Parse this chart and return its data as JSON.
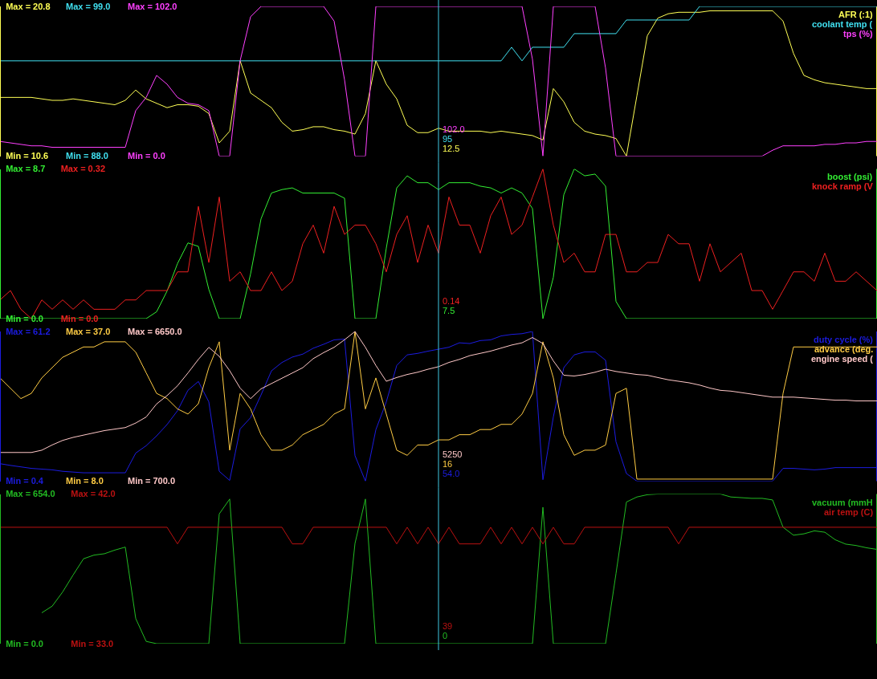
{
  "chart_data": [
    {
      "type": "line",
      "legend": "top right",
      "tick_labels": "y",
      "categories": [
        null,
        null,
        null,
        null,
        null,
        null,
        null,
        null,
        null,
        null,
        null,
        null,
        null,
        null,
        null,
        null,
        null,
        null,
        null,
        null,
        null,
        null,
        null,
        null,
        null,
        null,
        null,
        null,
        null,
        null,
        null,
        null,
        null,
        null,
        null,
        null,
        null,
        null,
        null,
        null,
        null,
        null,
        null,
        null,
        null,
        null,
        null,
        null,
        null,
        null,
        null,
        null,
        null,
        null,
        null,
        null,
        null,
        null,
        null,
        null,
        null,
        null,
        null,
        null,
        null,
        null,
        null,
        null,
        null,
        null,
        null,
        null,
        null,
        null,
        null,
        null,
        null,
        null,
        null,
        null,
        null,
        null,
        null,
        null,
        null
      ],
      "series": [
        {
          "name": "AFR (:1)",
          "color": "#ffff55",
          "axis": "y",
          "values": [
            14.6,
            14.6,
            14.6,
            14.6,
            14.5,
            14.4,
            14.4,
            14.5,
            14.4,
            14.3,
            14.2,
            14.1,
            14.4,
            15.1,
            14.5,
            14.2,
            13.9,
            14.1,
            14.1,
            14.0,
            13.5,
            11.5,
            12.3,
            17.1,
            14.9,
            14.4,
            13.9,
            12.9,
            12.3,
            12.4,
            12.6,
            12.6,
            12.4,
            12.3,
            12.1,
            13.5,
            17.1,
            15.5,
            14.5,
            12.7,
            12.2,
            12.2,
            12.5,
            12.3,
            12.3,
            12.3,
            12.3,
            12.2,
            12.3,
            12.2,
            12.1,
            12.0,
            11.7,
            15.2,
            14.3,
            12.9,
            12.3,
            12.1,
            12.0,
            11.8,
            10.6,
            14.7,
            18.8,
            20.0,
            20.3,
            20.4,
            20.4,
            20.4,
            20.5,
            20.5,
            20.5,
            20.5,
            20.5,
            20.5,
            20.5,
            19.8,
            17.6,
            16.1,
            15.8,
            15.6,
            15.5,
            15.4,
            15.3,
            15.2,
            15.2
          ]
        },
        {
          "name": "coolant temp (",
          "color": "#40e0f0",
          "axis": "y2",
          "values": [
            95,
            95,
            95,
            95,
            95,
            95,
            95,
            95,
            95,
            95,
            95,
            95,
            95,
            95,
            95,
            95,
            95,
            95,
            95,
            95,
            95,
            95,
            95,
            95,
            95,
            95,
            95,
            95,
            95,
            95,
            95,
            95,
            95,
            95,
            95,
            95,
            95,
            95,
            95,
            95,
            95,
            95,
            95,
            95,
            95,
            95,
            95,
            95,
            95,
            96,
            95,
            96,
            96,
            96,
            96,
            97,
            97,
            97,
            97,
            97,
            98,
            98,
            98,
            98,
            98,
            98,
            98,
            99,
            99,
            99,
            99,
            99,
            99,
            99,
            99,
            99,
            99,
            99,
            99,
            99,
            99,
            99,
            99,
            99,
            99
          ]
        },
        {
          "name": "tps (%)",
          "color": "#ff40ff",
          "axis": "y3",
          "values": [
            10,
            9,
            8,
            7,
            7,
            6,
            6,
            6,
            6,
            6,
            6,
            6,
            6,
            31,
            40,
            55,
            49,
            40,
            36,
            35,
            31,
            0,
            0,
            65,
            95,
            102,
            102,
            102,
            102,
            102,
            102,
            102,
            92,
            52,
            0,
            0,
            102,
            102,
            102,
            102,
            102,
            102,
            102,
            102,
            102,
            102,
            102,
            102,
            102,
            102,
            102,
            66,
            0,
            102,
            102,
            102,
            102,
            102,
            60,
            0,
            0,
            0,
            0,
            0,
            0,
            0,
            0,
            0,
            0,
            0,
            0,
            0,
            0,
            0,
            4,
            7,
            7,
            7,
            7,
            8,
            8,
            9,
            9,
            10,
            10
          ]
        }
      ],
      "ylim": [
        10.6,
        20.8
      ],
      "yticks": [
        {
          "value": 10.6,
          "label": "Min = 10.6"
        },
        {
          "value": 20.8,
          "label": "Max = 20.8"
        }
      ],
      "y2lim": [
        88,
        99
      ],
      "y2ticks": [
        {
          "value": 88,
          "label": "Min = 88.0"
        },
        {
          "value": 99,
          "label": "Max = 99.0"
        }
      ],
      "y3lim": [
        0,
        102
      ],
      "y3ticks": [
        {
          "value": 0,
          "label": "Min = 0.0"
        },
        {
          "value": 102,
          "label": "Max = 102.0"
        }
      ],
      "annotations": [
        "102.0",
        "95",
        "12.5"
      ]
    },
    {
      "type": "line",
      "legend": "top right",
      "tick_labels": "y",
      "categories": [
        null,
        null,
        null,
        null,
        null,
        null,
        null,
        null,
        null,
        null,
        null,
        null,
        null,
        null,
        null,
        null,
        null,
        null,
        null,
        null,
        null,
        null,
        null,
        null,
        null,
        null,
        null,
        null,
        null,
        null,
        null,
        null,
        null,
        null,
        null,
        null,
        null,
        null,
        null,
        null,
        null,
        null,
        null,
        null,
        null,
        null,
        null,
        null,
        null,
        null,
        null,
        null,
        null,
        null,
        null,
        null,
        null,
        null,
        null,
        null,
        null,
        null,
        null,
        null,
        null,
        null,
        null,
        null,
        null,
        null,
        null,
        null,
        null,
        null,
        null,
        null,
        null,
        null,
        null,
        null,
        null,
        null,
        null,
        null,
        null
      ],
      "series": [
        {
          "name": "boost (psi)",
          "color": "#33ee33",
          "axis": "y",
          "values": [
            0,
            0,
            0,
            0,
            0,
            0,
            0,
            0,
            0,
            0,
            0,
            0,
            0,
            0,
            0,
            0.4,
            1.6,
            3.2,
            4.4,
            4.2,
            1.7,
            0,
            0,
            0,
            2.6,
            5.8,
            7.3,
            7.5,
            7.6,
            7.3,
            7.3,
            7.3,
            7.3,
            7.0,
            0,
            0,
            0,
            4.1,
            7.6,
            8.3,
            7.9,
            7.9,
            7.5,
            7.9,
            7.9,
            7.9,
            7.7,
            7.6,
            7.3,
            7.6,
            7.3,
            6.4,
            0,
            2.4,
            7.2,
            8.7,
            8.3,
            8.4,
            7.7,
            1.0,
            0,
            0,
            0,
            0,
            0,
            0,
            0,
            0,
            0,
            0,
            0,
            0,
            0,
            0,
            0,
            0,
            0,
            0,
            0,
            0,
            0,
            0,
            0,
            0,
            0
          ]
        },
        {
          "name": "knock ramp (V",
          "color": "#ee2020",
          "axis": "y2",
          "values": [
            0.04,
            0.06,
            0.02,
            0,
            0.04,
            0.02,
            0.04,
            0.02,
            0.04,
            0.02,
            0.02,
            0.02,
            0.04,
            0.04,
            0.06,
            0.06,
            0.06,
            0.1,
            0.1,
            0.24,
            0.12,
            0.26,
            0.08,
            0.1,
            0.06,
            0.06,
            0.1,
            0.06,
            0.08,
            0.16,
            0.2,
            0.14,
            0.24,
            0.18,
            0.2,
            0.2,
            0.16,
            0.1,
            0.18,
            0.22,
            0.12,
            0.2,
            0.14,
            0.26,
            0.2,
            0.2,
            0.14,
            0.22,
            0.26,
            0.18,
            0.2,
            0.26,
            0.32,
            0.2,
            0.12,
            0.14,
            0.1,
            0.1,
            0.18,
            0.18,
            0.1,
            0.1,
            0.12,
            0.12,
            0.18,
            0.16,
            0.16,
            0.08,
            0.16,
            0.1,
            0.12,
            0.14,
            0.06,
            0.06,
            0.02,
            0.06,
            0.1,
            0.1,
            0.08,
            0.14,
            0.08,
            0.08,
            0.1,
            0.08,
            0.06
          ]
        }
      ],
      "ylim": [
        0,
        8.7
      ],
      "yticks": [
        {
          "value": 0,
          "label": "Min = 0.0"
        },
        {
          "value": 8.7,
          "label": "Max = 8.7"
        }
      ],
      "y2lim": [
        0,
        0.32
      ],
      "y2ticks": [
        {
          "value": 0,
          "label": "Min = 0.0"
        },
        {
          "value": 0.32,
          "label": "Max = 0.32"
        }
      ],
      "annotations": [
        "0.14",
        "7.5"
      ]
    },
    {
      "type": "line",
      "legend": "top right",
      "tick_labels": "y",
      "categories": [
        null,
        null,
        null,
        null,
        null,
        null,
        null,
        null,
        null,
        null,
        null,
        null,
        null,
        null,
        null,
        null,
        null,
        null,
        null,
        null,
        null,
        null,
        null,
        null,
        null,
        null,
        null,
        null,
        null,
        null,
        null,
        null,
        null,
        null,
        null,
        null,
        null,
        null,
        null,
        null,
        null,
        null,
        null,
        null,
        null,
        null,
        null,
        null,
        null,
        null,
        null,
        null,
        null,
        null,
        null,
        null,
        null,
        null,
        null,
        null,
        null,
        null,
        null,
        null,
        null,
        null,
        null,
        null,
        null,
        null,
        null,
        null,
        null,
        null,
        null,
        null,
        null,
        null,
        null,
        null,
        null,
        null,
        null,
        null,
        null
      ],
      "series": [
        {
          "name": "duty cycle (%)",
          "color": "#1c1ce0",
          "axis": "y",
          "values": [
            7.5,
            6.8,
            6.2,
            5.6,
            5.3,
            5.0,
            4.4,
            4.1,
            3.8,
            3.8,
            3.8,
            3.8,
            3.8,
            11.8,
            14.8,
            18.8,
            23.4,
            29.0,
            37.3,
            40.9,
            32.6,
            4.4,
            0.7,
            21.6,
            26.2,
            35.4,
            45.2,
            48.6,
            50.8,
            52.0,
            54.4,
            56.0,
            57.8,
            58.1,
            10.8,
            0.4,
            21.3,
            32.6,
            47.4,
            51.7,
            52.3,
            53.2,
            54.0,
            54.8,
            56.6,
            56.3,
            57.5,
            57.8,
            59.4,
            60.0,
            60.3,
            61.2,
            1.0,
            26.5,
            46.5,
            51.7,
            52.9,
            52.9,
            49.5,
            16.4,
            3.5,
            0.4,
            0.4,
            0.4,
            0.4,
            0.4,
            0.4,
            0.4,
            0.4,
            0.4,
            0.4,
            0.4,
            0.4,
            0.4,
            0.4,
            5.6,
            5.6,
            5.3,
            5.0,
            5.3,
            5.9,
            5.9,
            5.9,
            5.9,
            5.9
          ]
        },
        {
          "name": "advance (deg.",
          "color": "#ffcc44",
          "axis": "y2",
          "values": [
            28,
            26,
            24,
            25,
            28,
            30,
            32,
            33,
            34,
            34,
            35,
            35,
            35,
            33,
            29,
            25,
            24,
            22,
            21,
            23,
            30,
            35,
            14,
            25,
            22,
            17,
            14,
            14,
            15,
            17,
            18,
            19,
            21,
            22,
            37,
            22,
            28,
            21,
            14,
            13,
            15,
            15,
            16,
            16,
            17,
            17,
            18,
            18,
            19,
            19,
            21,
            25,
            35,
            28,
            17,
            13,
            14,
            14,
            15,
            25,
            26,
            8.4,
            8.4,
            8.4,
            8.4,
            8.4,
            8.4,
            8.4,
            8.4,
            8.4,
            8.4,
            8.4,
            8.4,
            8.4,
            8.4,
            25,
            34,
            34,
            34,
            34,
            34,
            34,
            34,
            34,
            34
          ]
        },
        {
          "name": "engine speed (",
          "color": "#ffc8c8",
          "axis": "y3",
          "values": [
            1840,
            1840,
            1840,
            1840,
            1930,
            2140,
            2320,
            2440,
            2530,
            2620,
            2710,
            2770,
            2830,
            3010,
            3250,
            3770,
            4100,
            4490,
            5000,
            5540,
            6020,
            5660,
            5090,
            4400,
            3980,
            4370,
            4580,
            4790,
            5000,
            5210,
            5570,
            5810,
            6020,
            6320,
            6650,
            6020,
            5300,
            4670,
            4820,
            4940,
            5030,
            5150,
            5250,
            5420,
            5540,
            5690,
            5780,
            5870,
            5990,
            6110,
            6200,
            6410,
            6170,
            5480,
            4910,
            4880,
            4940,
            5030,
            5150,
            5060,
            5000,
            4940,
            4910,
            4820,
            4730,
            4670,
            4610,
            4520,
            4400,
            4310,
            4280,
            4220,
            4160,
            4100,
            4040,
            4040,
            4040,
            4010,
            3980,
            3950,
            3920,
            3920,
            3890,
            3890,
            3890
          ]
        }
      ],
      "ylim": [
        0.4,
        61.2
      ],
      "yticks": [
        {
          "value": 0.4,
          "label": "Min = 0.4"
        },
        {
          "value": 61.2,
          "label": "Max = 61.2"
        }
      ],
      "y2lim": [
        8,
        37
      ],
      "y2ticks": [
        {
          "value": 8,
          "label": "Min = 8.0"
        },
        {
          "value": 37,
          "label": "Max = 37.0"
        }
      ],
      "y3lim": [
        700,
        6650
      ],
      "y3ticks": [
        {
          "value": 700,
          "label": "Min = 700.0"
        },
        {
          "value": 6650,
          "label": "Max = 6650.0"
        }
      ],
      "annotations": [
        "5250",
        "16",
        "54.0"
      ]
    },
    {
      "type": "line",
      "legend": "top right",
      "tick_labels": "y",
      "categories": [
        null,
        null,
        null,
        null,
        null,
        null,
        null,
        null,
        null,
        null,
        null,
        null,
        null,
        null,
        null,
        null,
        null,
        null,
        null,
        null,
        null,
        null,
        null,
        null,
        null,
        null,
        null,
        null,
        null,
        null,
        null,
        null,
        null,
        null,
        null,
        null,
        null,
        null,
        null,
        null,
        null,
        null,
        null,
        null,
        null,
        null,
        null,
        null,
        null,
        null,
        null,
        null,
        null,
        null,
        null,
        null,
        null,
        null,
        null,
        null,
        null,
        null,
        null,
        null,
        null,
        null,
        null,
        null,
        null,
        null,
        null,
        null,
        null,
        null,
        null,
        null,
        null,
        null,
        null,
        null,
        null,
        null,
        null,
        null,
        null
      ],
      "series": [
        {
          "name": "vacuum (mmH",
          "color": "#22bb22",
          "axis": "y",
          "values": [
            null,
            null,
            null,
            null,
            135,
            164,
            226,
            300,
            371,
            387,
            393,
            409,
            422,
            110,
            10,
            0,
            0,
            0,
            0,
            0,
            0,
            567,
            632,
            0,
            0,
            0,
            0,
            0,
            0,
            0,
            0,
            0,
            0,
            0,
            438,
            632,
            0,
            0,
            0,
            0,
            0,
            0,
            0,
            0,
            0,
            0,
            0,
            0,
            0,
            0,
            0,
            0,
            596,
            0,
            0,
            0,
            0,
            0,
            0,
            306,
            619,
            641,
            651,
            654,
            654,
            654,
            654,
            654,
            654,
            654,
            641,
            638,
            635,
            635,
            628,
            509,
            474,
            480,
            493,
            487,
            454,
            435,
            429,
            419,
            412
          ]
        },
        {
          "name": "air temp (C)",
          "color": "#bb1111",
          "axis": "y2",
          "values": [
            40,
            40,
            40,
            40,
            40,
            40,
            40,
            40,
            40,
            40,
            40,
            40,
            40,
            40,
            40,
            40,
            40,
            39,
            40,
            40,
            40,
            40,
            40,
            40,
            40,
            40,
            40,
            40,
            39,
            39,
            40,
            40,
            40,
            40,
            40,
            40,
            40,
            40,
            39,
            40,
            39,
            40,
            39,
            40,
            39,
            39,
            39,
            40,
            39,
            40,
            39,
            40,
            39,
            40,
            39,
            39,
            40,
            40,
            40,
            40,
            40,
            40,
            40,
            40,
            40,
            39,
            40,
            40,
            40,
            40,
            40,
            40,
            40,
            40,
            40,
            40,
            40,
            40,
            40,
            40,
            40,
            40,
            40,
            40,
            40
          ]
        }
      ],
      "ylim": [
        0,
        654
      ],
      "yticks": [
        {
          "value": 0,
          "label": "Min = 0.0"
        },
        {
          "value": 654,
          "label": "Max = 654.0"
        }
      ],
      "y2lim": [
        33,
        42
      ],
      "y2ticks": [
        {
          "value": 33,
          "label": "Min = 33.0"
        },
        {
          "value": 42,
          "label": "Max = 42.0"
        }
      ],
      "annotations": [
        "39",
        "0"
      ]
    }
  ]
}
